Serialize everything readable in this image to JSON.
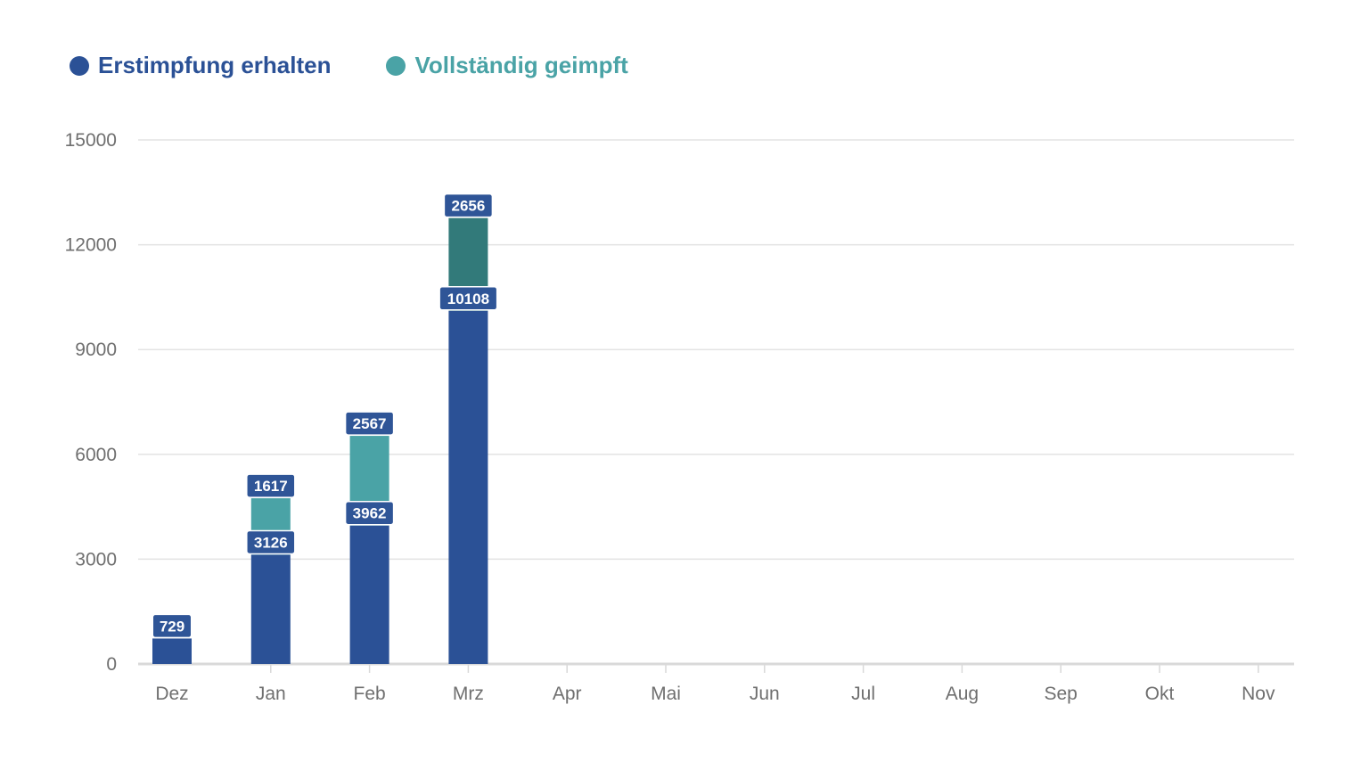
{
  "chart_data": {
    "type": "bar",
    "stacked": true,
    "categories": [
      "Dez",
      "Jan",
      "Feb",
      "Mrz",
      "Apr",
      "Mai",
      "Jun",
      "Jul",
      "Aug",
      "Sep",
      "Okt",
      "Nov"
    ],
    "series": [
      {
        "name": "Erstimpfung erhalten",
        "color": "#2b5196",
        "values": [
          729,
          3126,
          3962,
          10108,
          null,
          null,
          null,
          null,
          null,
          null,
          null,
          null
        ]
      },
      {
        "name": "Vollständig geimpft",
        "color": "#4aa3a6",
        "values": [
          null,
          1617,
          2567,
          2656,
          null,
          null,
          null,
          null,
          null,
          null,
          null,
          null
        ]
      }
    ],
    "highlight_color": "#327a7a",
    "highlight_category": "Mrz",
    "label_bg": "#2f5597",
    "y_ticks": [
      "0",
      "3000",
      "6000",
      "9000",
      "12000",
      "15000"
    ],
    "ylim": [
      0,
      15000
    ],
    "grid": true,
    "legend_position": "top-left"
  }
}
